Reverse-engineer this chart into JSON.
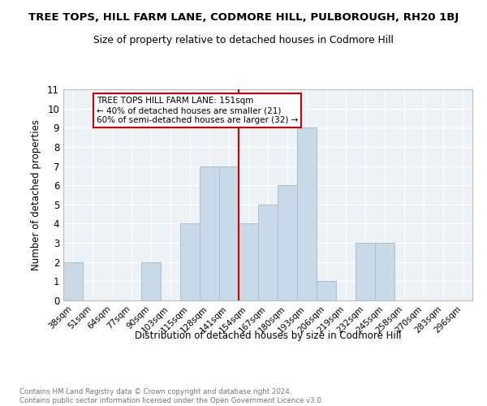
{
  "title_line1": "TREE TOPS, HILL FARM LANE, CODMORE HILL, PULBOROUGH, RH20 1BJ",
  "title_line2": "Size of property relative to detached houses in Codmore Hill",
  "xlabel": "Distribution of detached houses by size in Codmore Hill",
  "ylabel": "Number of detached properties",
  "bar_labels": [
    "38sqm",
    "51sqm",
    "64sqm",
    "77sqm",
    "90sqm",
    "103sqm",
    "115sqm",
    "128sqm",
    "141sqm",
    "154sqm",
    "167sqm",
    "180sqm",
    "193sqm",
    "206sqm",
    "219sqm",
    "232sqm",
    "245sqm",
    "258sqm",
    "270sqm",
    "283sqm",
    "296sqm"
  ],
  "bar_values": [
    2,
    0,
    0,
    0,
    2,
    0,
    4,
    7,
    7,
    4,
    5,
    6,
    9,
    1,
    0,
    3,
    3,
    0,
    0,
    0,
    0
  ],
  "bar_color": "#c9d9e8",
  "bar_edgecolor": "#a8bfcf",
  "vline_x": 8.5,
  "vline_color": "#cc0000",
  "annotation_text": "TREE TOPS HILL FARM LANE: 151sqm\n← 40% of detached houses are smaller (21)\n60% of semi-detached houses are larger (32) →",
  "annotation_box_edgecolor": "#cc0000",
  "ylim": [
    0,
    11
  ],
  "yticks": [
    0,
    1,
    2,
    3,
    4,
    5,
    6,
    7,
    8,
    9,
    10,
    11
  ],
  "footer_text": "Contains HM Land Registry data © Crown copyright and database right 2024.\nContains public sector information licensed under the Open Government Licence v3.0.",
  "background_color": "#edf2f7",
  "grid_color": "#ffffff",
  "fig_width": 6.0,
  "fig_height": 5.0,
  "dpi": 100
}
